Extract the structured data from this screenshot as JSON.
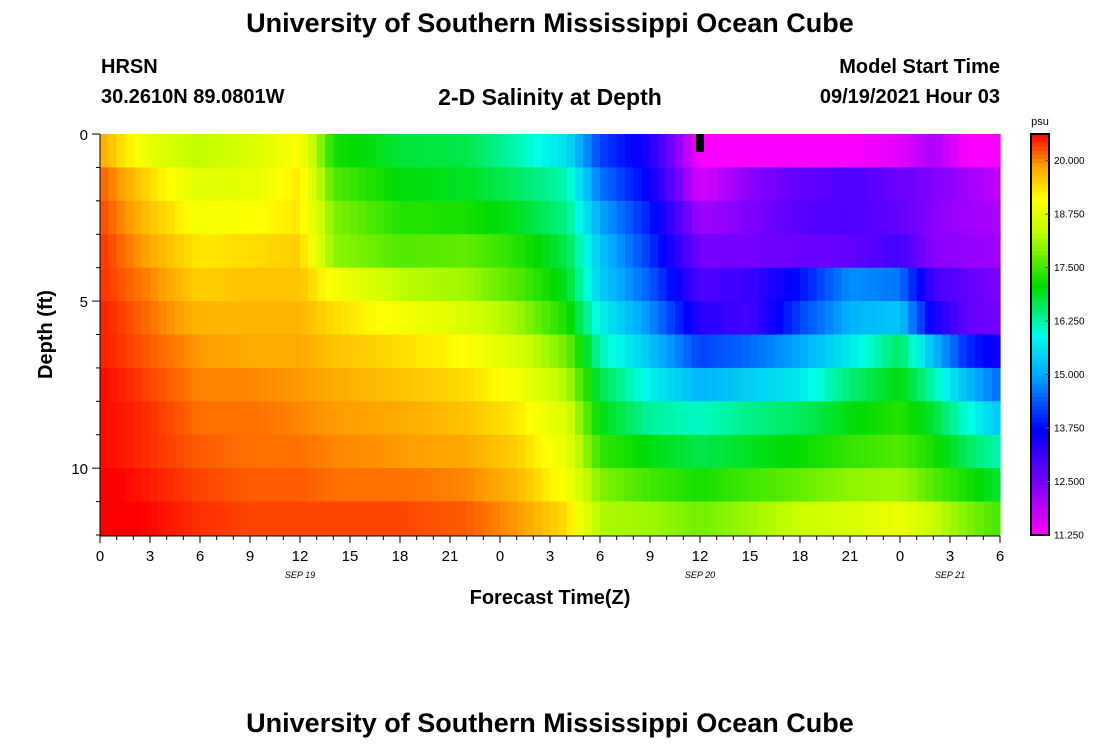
{
  "header": {
    "title": "University of Southern Mississippi Ocean Cube",
    "station": "HRSN",
    "coords": "30.2610N  89.0801W",
    "subtitle": "2-D Salinity at Depth",
    "model_label": "Model Start Time",
    "model_time": "09/19/2021 Hour 03"
  },
  "footer": {
    "title": "University of Southern Mississippi Ocean Cube"
  },
  "chart_data": {
    "type": "heatmap",
    "title": "2-D Salinity at Depth",
    "xlabel": "Forecast Time(Z)",
    "ylabel": "Depth (ft)",
    "xlim": [
      0,
      54
    ],
    "ylim": [
      0,
      12
    ],
    "x_tick_labels": [
      "0",
      "3",
      "6",
      "9",
      "12",
      "15",
      "18",
      "21",
      "0",
      "3",
      "6",
      "9",
      "12",
      "15",
      "18",
      "21",
      "0",
      "3",
      "6"
    ],
    "y_ticks": [
      0,
      5,
      10
    ],
    "date_labels": [
      {
        "hour": 12,
        "text": "SEP 19"
      },
      {
        "hour": 36,
        "text": "SEP 20"
      },
      {
        "hour": 51,
        "text": "SEP 21"
      }
    ],
    "now_marker_hour": 36,
    "colorbar": {
      "unit": "psu",
      "min": 11.25,
      "max": 20.625,
      "tick_labels": [
        "20.000",
        "18.750",
        "17.500",
        "16.250",
        "15.000",
        "13.750",
        "12.500",
        "11.250"
      ],
      "tick_values": [
        20.0,
        18.75,
        17.5,
        16.25,
        15.0,
        13.75,
        12.5,
        11.25
      ]
    },
    "depth_levels_ft": [
      0,
      1,
      2,
      3,
      4,
      5,
      6,
      7,
      8,
      9,
      10,
      11
    ],
    "time_keys_hours": [
      0,
      3,
      6,
      9,
      12,
      14,
      18,
      22,
      25,
      28,
      30,
      33,
      36,
      39,
      42,
      45,
      48,
      50,
      52,
      54
    ],
    "salinity_psu": [
      [
        19.8,
        18.8,
        18.3,
        18.6,
        19.1,
        17.2,
        16.8,
        16.7,
        16.2,
        15.6,
        14.2,
        13.4,
        11.3,
        11.3,
        11.3,
        11.3,
        11.5,
        12.0,
        11.3,
        11.3
      ],
      [
        20.2,
        19.4,
        18.7,
        18.8,
        19.3,
        17.6,
        17.0,
        16.9,
        16.6,
        16.2,
        14.6,
        13.6,
        11.6,
        12.3,
        12.7,
        12.9,
        12.6,
        12.4,
        12.1,
        11.8
      ],
      [
        20.3,
        19.6,
        19.0,
        19.1,
        19.3,
        17.9,
        17.3,
        17.2,
        16.9,
        16.4,
        15.0,
        13.9,
        12.1,
        12.4,
        12.8,
        12.9,
        12.7,
        12.3,
        12.1,
        12.0
      ],
      [
        20.4,
        19.8,
        19.3,
        19.4,
        19.5,
        18.0,
        17.6,
        17.7,
        17.3,
        16.7,
        15.3,
        14.1,
        12.5,
        12.5,
        12.6,
        12.7,
        13.0,
        12.3,
        12.2,
        12.1
      ],
      [
        20.4,
        20.0,
        19.5,
        19.6,
        19.6,
        19.0,
        18.3,
        18.1,
        17.6,
        16.9,
        15.4,
        14.4,
        12.9,
        13.1,
        13.8,
        14.8,
        14.6,
        13.0,
        12.7,
        12.4
      ],
      [
        20.5,
        20.1,
        19.7,
        19.7,
        19.7,
        19.4,
        19.0,
        18.6,
        18.1,
        17.2,
        15.8,
        14.8,
        13.3,
        13.0,
        14.2,
        15.1,
        15.3,
        13.5,
        12.7,
        12.5
      ],
      [
        20.5,
        20.2,
        19.9,
        19.8,
        19.8,
        19.6,
        19.4,
        19.1,
        18.6,
        17.8,
        16.2,
        15.3,
        14.2,
        14.5,
        15.0,
        15.7,
        16.6,
        15.2,
        14.0,
        13.5
      ],
      [
        20.6,
        20.3,
        20.0,
        20.0,
        19.9,
        19.8,
        19.6,
        19.4,
        19.0,
        18.2,
        16.7,
        15.8,
        15.1,
        15.4,
        15.7,
        16.5,
        17.0,
        16.2,
        15.2,
        14.5
      ],
      [
        20.6,
        20.4,
        20.1,
        20.1,
        20.0,
        19.9,
        19.8,
        19.6,
        19.3,
        18.6,
        17.0,
        16.3,
        16.1,
        16.4,
        16.6,
        17.0,
        17.3,
        16.8,
        16.0,
        15.3
      ],
      [
        20.6,
        20.4,
        20.2,
        20.1,
        20.1,
        20.0,
        19.9,
        19.8,
        19.5,
        18.8,
        17.4,
        17.0,
        16.7,
        16.9,
        17.1,
        17.4,
        17.6,
        17.2,
        16.6,
        16.2
      ],
      [
        20.7,
        20.5,
        20.3,
        20.2,
        20.2,
        20.1,
        20.1,
        20.0,
        19.7,
        19.0,
        17.9,
        17.5,
        17.2,
        17.5,
        17.7,
        18.0,
        18.1,
        17.6,
        17.2,
        16.8
      ],
      [
        20.7,
        20.6,
        20.4,
        20.3,
        20.3,
        20.3,
        20.3,
        20.2,
        19.9,
        19.4,
        18.2,
        18.1,
        17.8,
        18.1,
        18.4,
        18.6,
        18.9,
        18.4,
        17.9,
        17.5
      ]
    ]
  }
}
